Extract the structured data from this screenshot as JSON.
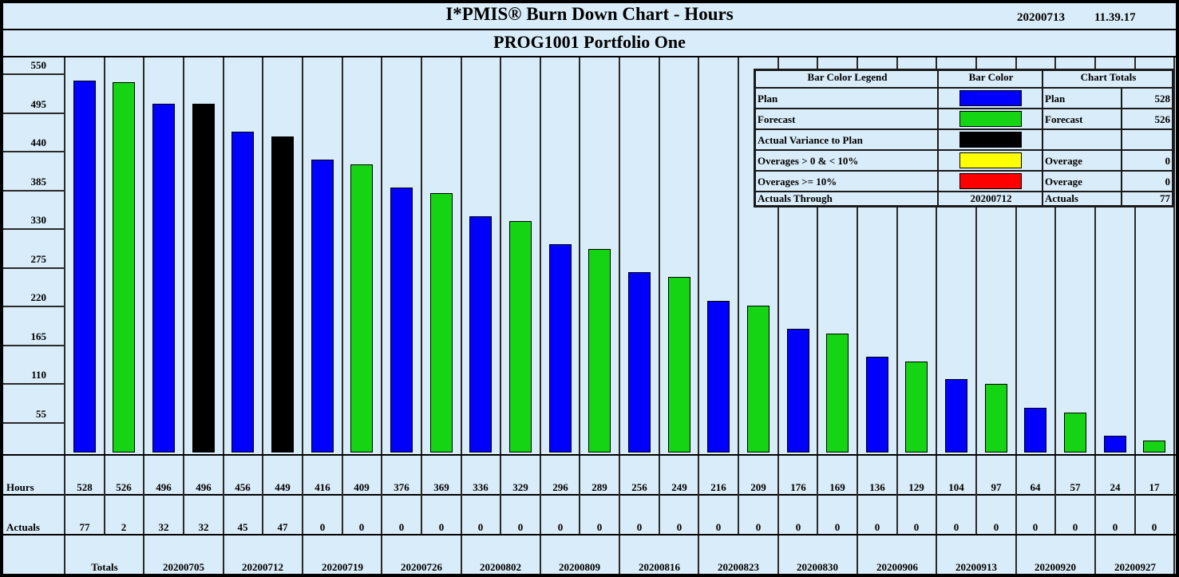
{
  "title": "I*PMIS® Burn Down Chart - Hours",
  "stamp_date": "20200713",
  "stamp_time": "11.39.17",
  "subtitle": "PROG1001 Portfolio One",
  "colors": {
    "plan": "#0000ff",
    "forecast": "#14d414",
    "actual_variance": "#000000",
    "overage_small": "#ffff00",
    "overage_large": "#ff0000",
    "background": "#d9ecf9"
  },
  "chart_data": {
    "type": "bar",
    "title": "I*PMIS® Burn Down Chart - Hours",
    "ylim": [
      0,
      550
    ],
    "yticks": [
      "55",
      "110",
      "165",
      "220",
      "275",
      "330",
      "385",
      "440",
      "495",
      "550"
    ],
    "categories": [
      "Totals",
      "20200705",
      "20200712",
      "20200719",
      "20200726",
      "20200802",
      "20200809",
      "20200816",
      "20200823",
      "20200830",
      "20200906",
      "20200913",
      "20200920",
      "20200927"
    ],
    "series": [
      {
        "name": "Plan",
        "values": [
          528,
          496,
          456,
          416,
          376,
          336,
          296,
          256,
          216,
          176,
          136,
          104,
          64,
          24
        ]
      },
      {
        "name": "Forecast",
        "values": [
          526,
          496,
          449,
          409,
          369,
          329,
          289,
          249,
          209,
          169,
          129,
          97,
          57,
          17
        ]
      }
    ],
    "bar_colors": [
      "plan",
      "forecast",
      "plan",
      "actual_variance",
      "plan",
      "actual_variance",
      "plan",
      "forecast",
      "plan",
      "forecast",
      "plan",
      "forecast",
      "plan",
      "forecast",
      "plan",
      "forecast",
      "plan",
      "forecast",
      "plan",
      "forecast",
      "plan",
      "forecast",
      "plan",
      "forecast",
      "plan",
      "forecast",
      "plan",
      "forecast"
    ],
    "hours_label": "Hours",
    "actuals_label": "Actuals",
    "hours": [
      "528",
      "526",
      "496",
      "496",
      "456",
      "449",
      "416",
      "409",
      "376",
      "369",
      "336",
      "329",
      "296",
      "289",
      "256",
      "249",
      "216",
      "209",
      "176",
      "169",
      "136",
      "129",
      "104",
      "97",
      "64",
      "57",
      "24",
      "17"
    ],
    "actuals": [
      "77",
      "2",
      "32",
      "32",
      "45",
      "47",
      "0",
      "0",
      "0",
      "0",
      "0",
      "0",
      "0",
      "0",
      "0",
      "0",
      "0",
      "0",
      "0",
      "0",
      "0",
      "0",
      "0",
      "0",
      "0",
      "0",
      "0",
      "0"
    ]
  },
  "legend": {
    "header_legend": "Bar Color Legend",
    "header_color": "Bar Color",
    "header_totals": "Chart Totals",
    "rows": [
      {
        "label": "Plan",
        "color": "plan",
        "total_label": "Plan",
        "total_value": "528"
      },
      {
        "label": "Forecast",
        "color": "forecast",
        "total_label": "Forecast",
        "total_value": "526"
      },
      {
        "label": "Actual Variance to Plan",
        "color": "actual_variance",
        "total_label": "",
        "total_value": ""
      },
      {
        "label": "Overages > 0 & < 10%",
        "color": "overage_small",
        "total_label": "Overage",
        "total_value": "0"
      },
      {
        "label": "Overages >= 10%",
        "color": "overage_large",
        "total_label": "Overage",
        "total_value": "0"
      }
    ],
    "through_label": "Actuals Through",
    "through_value": "20200712",
    "actuals_label": "Actuals",
    "actuals_value": "77"
  }
}
